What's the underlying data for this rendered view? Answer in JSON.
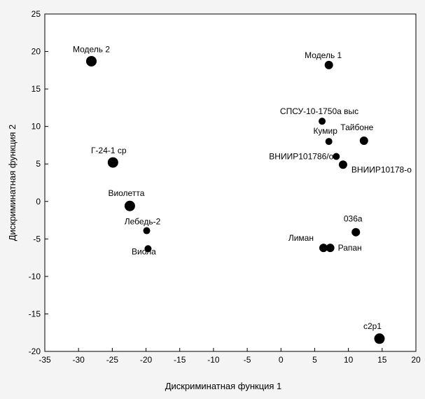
{
  "chart_data": {
    "type": "scatter",
    "title": "",
    "xlabel": "Дискриминатная функция 1",
    "ylabel": "Дискриминатная функция 2",
    "xlim": [
      -35,
      20
    ],
    "ylim": [
      -20,
      25
    ],
    "xticks": [
      -35,
      -30,
      -25,
      -20,
      -15,
      -10,
      -5,
      0,
      5,
      10,
      15,
      20
    ],
    "yticks": [
      -20,
      -15,
      -10,
      -5,
      0,
      5,
      10,
      15,
      20,
      25
    ],
    "grid": false,
    "points": [
      {
        "label": "Модель 2",
        "x": -28.1,
        "y": 18.7,
        "size": "large"
      },
      {
        "label": "Модель 1",
        "x": 7.1,
        "y": 18.2,
        "size": "medium"
      },
      {
        "label": "СПСУ-10-1750а выс",
        "x": 6.1,
        "y": 10.7,
        "size": "small"
      },
      {
        "label": "Кумир",
        "x": 7.1,
        "y": 8.0,
        "size": "small"
      },
      {
        "label": "Тайбоне",
        "x": 12.3,
        "y": 8.1,
        "size": "medium"
      },
      {
        "label": "ВНИИР101786/о",
        "x": 8.2,
        "y": 6.0,
        "size": "small"
      },
      {
        "label": "ВНИИР10178-о",
        "x": 9.2,
        "y": 4.9,
        "size": "medium"
      },
      {
        "label": "Г-24-1 ср",
        "x": -24.9,
        "y": 5.2,
        "size": "large"
      },
      {
        "label": "Виолетта",
        "x": -22.4,
        "y": -0.6,
        "size": "large"
      },
      {
        "label": "Лебедь-2",
        "x": -19.9,
        "y": -3.9,
        "size": "small"
      },
      {
        "label": "Виола",
        "x": -19.7,
        "y": -6.3,
        "size": "small"
      },
      {
        "label": "036а",
        "x": 11.1,
        "y": -4.1,
        "size": "medium"
      },
      {
        "label": "Лиман",
        "x": 6.3,
        "y": -6.2,
        "size": "medium"
      },
      {
        "label": "Рапан",
        "x": 7.3,
        "y": -6.2,
        "size": "medium"
      },
      {
        "label": "с2р1",
        "x": 14.6,
        "y": -18.3,
        "size": "large"
      }
    ]
  }
}
